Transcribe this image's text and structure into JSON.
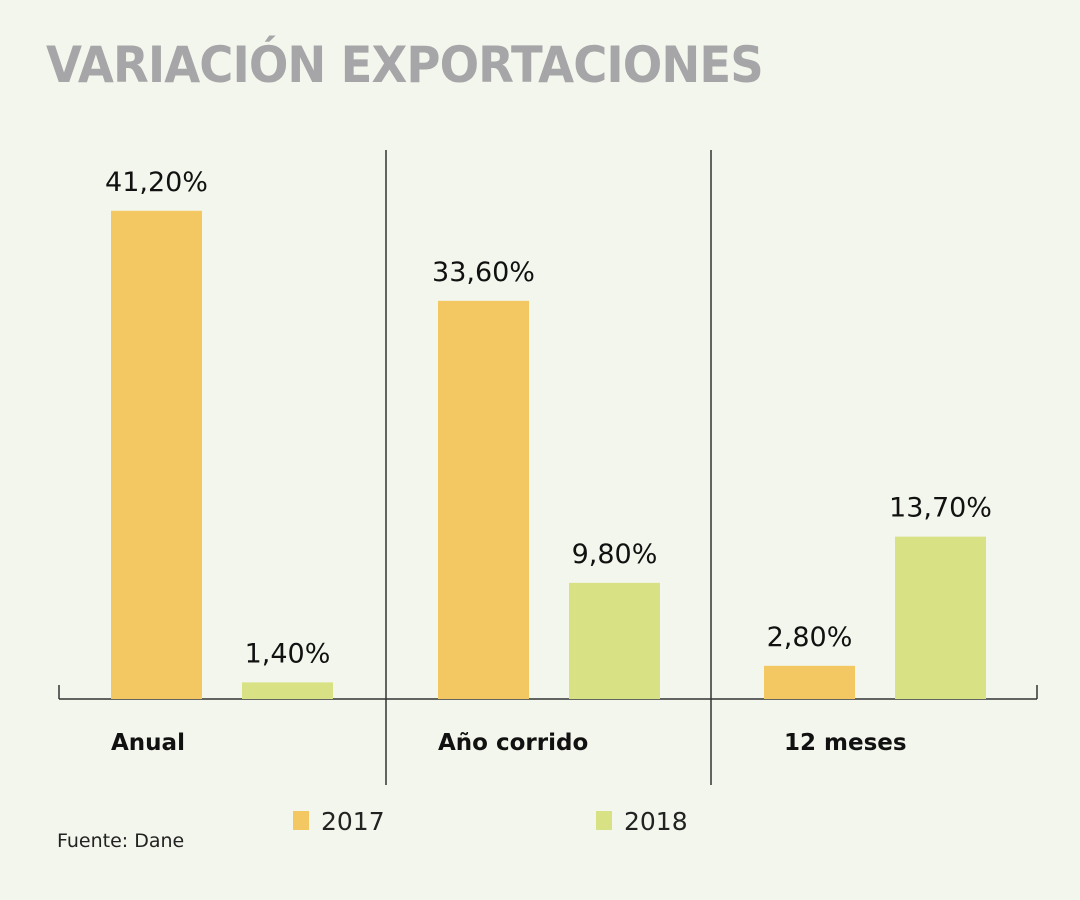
{
  "chart_data": {
    "type": "bar",
    "title": "VARIACIÓN EXPORTACIONES",
    "categories": [
      "Anual",
      "Año corrido",
      "12 meses"
    ],
    "series": [
      {
        "name": "2017",
        "color": "#f3c862",
        "values": [
          41.2,
          33.6,
          2.8
        ],
        "labels": [
          "41,20%",
          "33,60%",
          "2,80%"
        ]
      },
      {
        "name": "2018",
        "color": "#d8e183",
        "values": [
          1.4,
          9.8,
          13.7
        ],
        "labels": [
          "1,40%",
          "9,80%",
          "13,70%"
        ]
      }
    ],
    "xlabel": "",
    "ylabel": "",
    "ylim": [
      0,
      45
    ],
    "grid": false,
    "legend": "bottom",
    "source": "Fuente: Dane"
  }
}
